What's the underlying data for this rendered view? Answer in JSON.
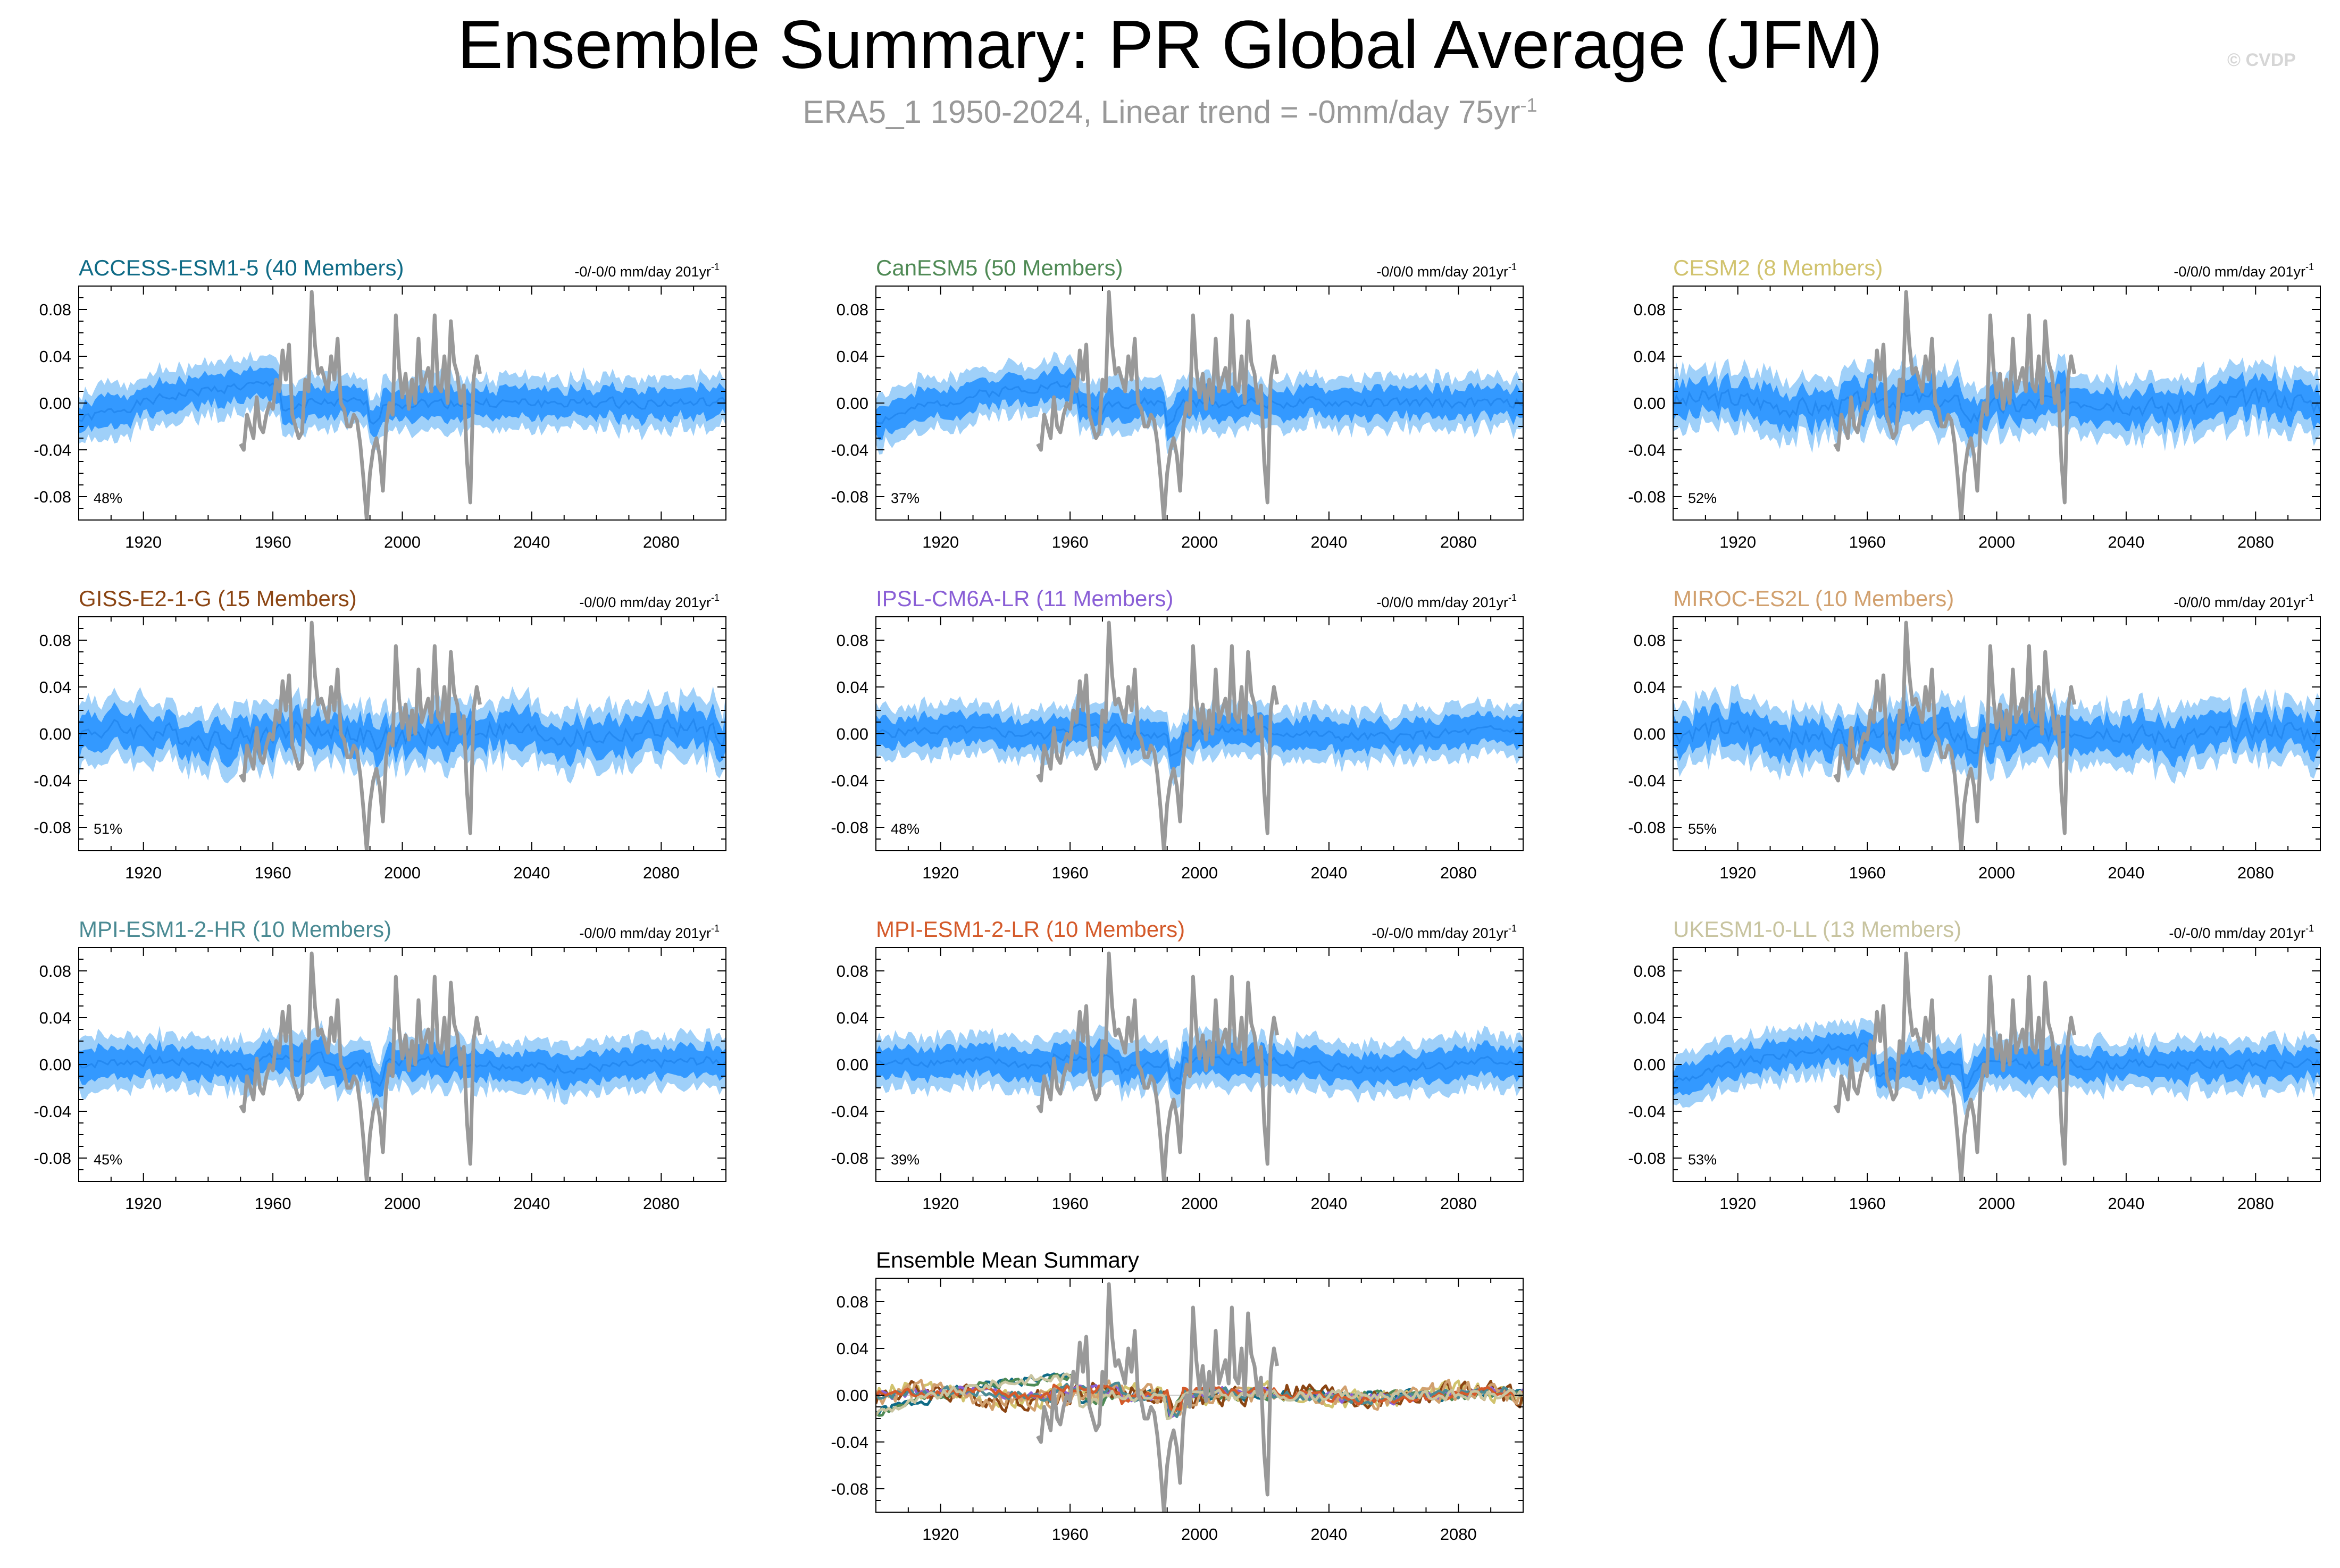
{
  "header": {
    "title": "Ensemble Summary: PR Global Average (JFM)",
    "subtitle_main": "ERA5_1 1950-2024, Linear trend = -0mm/day 75yr",
    "subtitle_exp": "-1",
    "copyright": "© CVDP"
  },
  "colors": {
    "band_outer": "#9fd0f9",
    "band_inner": "#3399ff",
    "mean_line": "#1a7fe8",
    "obs_line": "#999999",
    "zero_line": "#cccccc"
  },
  "chart_data": [
    {
      "type": "area",
      "title": "ACCESS-ESM1-5 (40 Members)",
      "title_color": "#0f6b86",
      "trend": "-0/-0/0 mm/day 201yr",
      "trend_exp": "-1",
      "percent": "48%",
      "shape": "arc",
      "seed": 1,
      "xlim": [
        1900,
        2100
      ],
      "ylim": [
        -0.1,
        0.1
      ],
      "yticks": [
        "0.08",
        "0.04",
        "0.00",
        "-0.04",
        "-0.08"
      ],
      "xticks": [
        "1920",
        "1960",
        "2000",
        "2040",
        "2080"
      ]
    },
    {
      "type": "area",
      "title": "CanESM5 (50 Members)",
      "title_color": "#4f8a55",
      "trend": "-0/0/0 mm/day 201yr",
      "trend_exp": "-1",
      "percent": "37%",
      "shape": "arc",
      "seed": 2,
      "xlim": [
        1900,
        2100
      ],
      "ylim": [
        -0.1,
        0.1
      ],
      "yticks": [
        "0.08",
        "0.04",
        "0.00",
        "-0.04",
        "-0.08"
      ],
      "xticks": [
        "1920",
        "1960",
        "2000",
        "2040",
        "2080"
      ]
    },
    {
      "type": "area",
      "title": "CESM2 (8 Members)",
      "title_color": "#d1c36e",
      "trend": "-0/0/0 mm/day 201yr",
      "trend_exp": "-1",
      "percent": "52%",
      "shape": "noisy",
      "seed": 3,
      "xlim": [
        1900,
        2100
      ],
      "ylim": [
        -0.1,
        0.1
      ],
      "yticks": [
        "0.08",
        "0.04",
        "0.00",
        "-0.04",
        "-0.08"
      ],
      "xticks": [
        "1920",
        "1960",
        "2000",
        "2040",
        "2080"
      ]
    },
    {
      "type": "area",
      "title": "GISS-E2-1-G (15 Members)",
      "title_color": "#8b4513",
      "trend": "-0/0/0 mm/day 201yr",
      "trend_exp": "-1",
      "percent": "51%",
      "shape": "noisy",
      "seed": 4,
      "xlim": [
        1900,
        2100
      ],
      "ylim": [
        -0.1,
        0.1
      ],
      "yticks": [
        "0.08",
        "0.04",
        "0.00",
        "-0.04",
        "-0.08"
      ],
      "xticks": [
        "1920",
        "1960",
        "2000",
        "2040",
        "2080"
      ]
    },
    {
      "type": "area",
      "title": "IPSL-CM6A-LR (11 Members)",
      "title_color": "#8a5fd6",
      "trend": "-0/0/0 mm/day 201yr",
      "trend_exp": "-1",
      "percent": "48%",
      "shape": "flat",
      "seed": 5,
      "xlim": [
        1900,
        2100
      ],
      "ylim": [
        -0.1,
        0.1
      ],
      "yticks": [
        "0.08",
        "0.04",
        "0.00",
        "-0.04",
        "-0.08"
      ],
      "xticks": [
        "1920",
        "1960",
        "2000",
        "2040",
        "2080"
      ]
    },
    {
      "type": "area",
      "title": "MIROC-ES2L (10 Members)",
      "title_color": "#d1a06e",
      "trend": "-0/0/0 mm/day 201yr",
      "trend_exp": "-1",
      "percent": "55%",
      "shape": "noisy",
      "seed": 6,
      "xlim": [
        1900,
        2100
      ],
      "ylim": [
        -0.1,
        0.1
      ],
      "yticks": [
        "0.08",
        "0.04",
        "0.00",
        "-0.04",
        "-0.08"
      ],
      "xticks": [
        "1920",
        "1960",
        "2000",
        "2040",
        "2080"
      ]
    },
    {
      "type": "area",
      "title": "MPI-ESM1-2-HR (10 Members)",
      "title_color": "#4a8a93",
      "trend": "-0/0/0 mm/day 201yr",
      "trend_exp": "-1",
      "percent": "45%",
      "shape": "flat",
      "seed": 7,
      "xlim": [
        1900,
        2100
      ],
      "ylim": [
        -0.1,
        0.1
      ],
      "yticks": [
        "0.08",
        "0.04",
        "0.00",
        "-0.04",
        "-0.08"
      ],
      "xticks": [
        "1920",
        "1960",
        "2000",
        "2040",
        "2080"
      ]
    },
    {
      "type": "area",
      "title": "MPI-ESM1-2-LR (10 Members)",
      "title_color": "#d45a2a",
      "trend": "-0/-0/0 mm/day 201yr",
      "trend_exp": "-1",
      "percent": "39%",
      "shape": "flat",
      "seed": 8,
      "xlim": [
        1900,
        2100
      ],
      "ylim": [
        -0.1,
        0.1
      ],
      "yticks": [
        "0.08",
        "0.04",
        "0.00",
        "-0.04",
        "-0.08"
      ],
      "xticks": [
        "1920",
        "1960",
        "2000",
        "2040",
        "2080"
      ]
    },
    {
      "type": "area",
      "title": "UKESM1-0-LL (13 Members)",
      "title_color": "#c8c4a0",
      "trend": "-0/-0/0 mm/day 201yr",
      "trend_exp": "-1",
      "percent": "53%",
      "shape": "arc",
      "seed": 9,
      "xlim": [
        1900,
        2100
      ],
      "ylim": [
        -0.1,
        0.1
      ],
      "yticks": [
        "0.08",
        "0.04",
        "0.00",
        "-0.04",
        "-0.08"
      ],
      "xticks": [
        "1920",
        "1960",
        "2000",
        "2040",
        "2080"
      ]
    },
    {
      "type": "line",
      "title": "Ensemble Mean Summary",
      "title_color": "#000000",
      "xlim": [
        1900,
        2100
      ],
      "ylim": [
        -0.1,
        0.1
      ],
      "yticks": [
        "0.08",
        "0.04",
        "0.00",
        "-0.04",
        "-0.08"
      ],
      "xticks": [
        "1920",
        "1960",
        "2000",
        "2040",
        "2080"
      ],
      "series_colors": [
        "#0f6b86",
        "#4f8a55",
        "#d1c36e",
        "#8b4513",
        "#8a5fd6",
        "#d1a06e",
        "#4a8a93",
        "#d45a2a",
        "#c8c4a0"
      ]
    }
  ],
  "obs_series": {
    "name": "ERA5_1",
    "years": [
      1950,
      1951,
      1952,
      1953,
      1954,
      1955,
      1956,
      1957,
      1958,
      1959,
      1960,
      1961,
      1962,
      1963,
      1964,
      1965,
      1966,
      1967,
      1968,
      1969,
      1970,
      1971,
      1972,
      1973,
      1974,
      1975,
      1976,
      1977,
      1978,
      1979,
      1980,
      1981,
      1982,
      1983,
      1984,
      1985,
      1986,
      1987,
      1988,
      1989,
      1990,
      1991,
      1992,
      1993,
      1994,
      1995,
      1996,
      1997,
      1998,
      1999,
      2000,
      2001,
      2002,
      2003,
      2004,
      2005,
      2006,
      2007,
      2008,
      2009,
      2010,
      2011,
      2012,
      2013,
      2014,
      2015,
      2016,
      2017,
      2018,
      2019,
      2020,
      2021,
      2022,
      2023,
      2024
    ],
    "values": [
      -0.035,
      -0.04,
      -0.01,
      -0.02,
      -0.03,
      0.005,
      -0.02,
      -0.025,
      -0.01,
      0.0,
      -0.005,
      0.02,
      0.01,
      0.045,
      0.02,
      0.05,
      -0.01,
      -0.02,
      -0.03,
      -0.025,
      0.02,
      0.01,
      0.095,
      0.05,
      0.025,
      0.03,
      0.02,
      0.01,
      0.04,
      0.02,
      0.055,
      0.0,
      -0.005,
      -0.02,
      -0.02,
      -0.01,
      -0.015,
      -0.035,
      -0.065,
      -0.1,
      -0.06,
      -0.04,
      -0.03,
      -0.045,
      -0.075,
      -0.02,
      0.0,
      -0.01,
      0.075,
      0.03,
      0.005,
      0.025,
      -0.005,
      0.02,
      0.0,
      0.055,
      0.01,
      0.02,
      0.03,
      0.01,
      0.075,
      0.015,
      0.01,
      0.04,
      0.0,
      0.07,
      0.035,
      0.025,
      0.0,
      0.015,
      -0.05,
      -0.085,
      0.02,
      0.04,
      0.025
    ]
  }
}
